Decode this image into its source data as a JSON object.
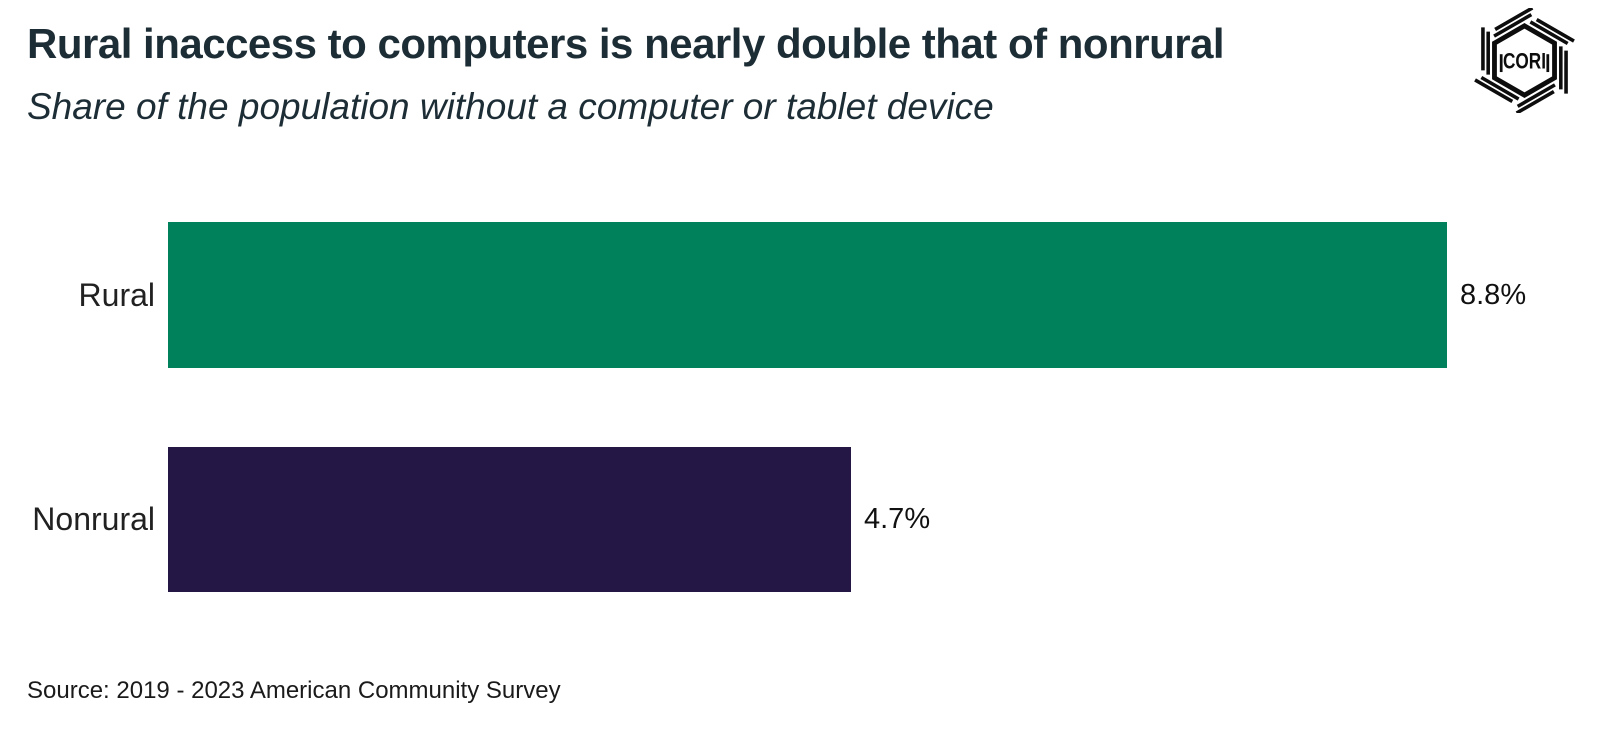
{
  "header": {
    "logo_text": "CORI"
  },
  "chart_data": {
    "type": "bar",
    "orientation": "horizontal",
    "title": "Rural inaccess to computers is nearly double that of nonrural",
    "subtitle": "Share of the population without a computer or tablet device",
    "categories": [
      "Rural",
      "Nonrural"
    ],
    "values": [
      8.8,
      4.7
    ],
    "value_labels": [
      "8.8%",
      "4.7%"
    ],
    "axis_max": 8.8,
    "xlim": [
      0,
      8.8
    ],
    "grid": "off",
    "legend": "none",
    "bar_colors": [
      "#00815C",
      "#241745"
    ],
    "category_label_color": "#212121",
    "value_label_color": "#111111",
    "source": "Source: 2019 - 2023 American Community Survey"
  }
}
